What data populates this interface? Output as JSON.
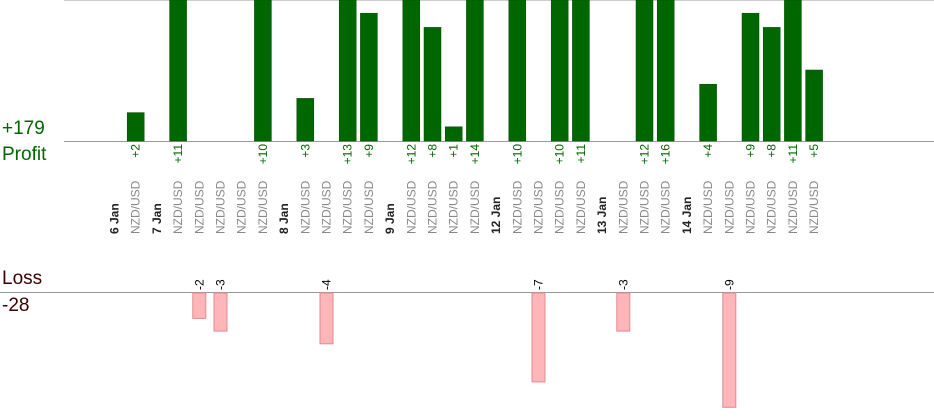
{
  "summary": {
    "profit_total": "+179",
    "profit_label": "Profit",
    "loss_label": "Loss",
    "loss_total": "-28"
  },
  "colors": {
    "profit_bar": "#006600",
    "loss_bar": "#ffb6b8",
    "loss_bar_stroke": "#e08b8f",
    "profit_text": "#006600",
    "loss_text": "#000000",
    "date_text": "#222222",
    "pair_text": "#888888"
  },
  "chart_data": {
    "type": "bar",
    "title": "",
    "xlabel": "",
    "ylabel": "",
    "grid": false,
    "legend": "none",
    "columns": [
      {
        "kind": "date",
        "label": "6 Jan"
      },
      {
        "kind": "trade",
        "label": "NZD/USD",
        "value": 2,
        "value_label": "+2"
      },
      {
        "kind": "date",
        "label": "7 Jan"
      },
      {
        "kind": "trade",
        "label": "NZD/USD",
        "value": 11,
        "value_label": "+11"
      },
      {
        "kind": "trade",
        "label": "NZD/USD",
        "value": -2,
        "value_label": "-2"
      },
      {
        "kind": "trade",
        "label": "NZD/USD",
        "value": -3,
        "value_label": "-3"
      },
      {
        "kind": "trade",
        "label": "NZD/USD",
        "value": null
      },
      {
        "kind": "trade",
        "label": "NZD/USD",
        "value": 10,
        "value_label": "+10"
      },
      {
        "kind": "date",
        "label": "8 Jan"
      },
      {
        "kind": "trade",
        "label": "NZD/USD",
        "value": 3,
        "value_label": "+3"
      },
      {
        "kind": "trade",
        "label": "NZD/USD",
        "value": -4,
        "value_label": "-4"
      },
      {
        "kind": "trade",
        "label": "NZD/USD",
        "value": 13,
        "value_label": "+13"
      },
      {
        "kind": "trade",
        "label": "NZD/USD",
        "value": 9,
        "value_label": "+9"
      },
      {
        "kind": "date",
        "label": "9 Jan"
      },
      {
        "kind": "trade",
        "label": "NZD/USD",
        "value": 12,
        "value_label": "+12"
      },
      {
        "kind": "trade",
        "label": "NZD/USD",
        "value": 8,
        "value_label": "+8"
      },
      {
        "kind": "trade",
        "label": "NZD/USD",
        "value": 1,
        "value_label": "+1"
      },
      {
        "kind": "trade",
        "label": "NZD/USD",
        "value": 14,
        "value_label": "+14"
      },
      {
        "kind": "date",
        "label": "12 Jan"
      },
      {
        "kind": "trade",
        "label": "NZD/USD",
        "value": 10,
        "value_label": "+10"
      },
      {
        "kind": "trade",
        "label": "NZD/USD",
        "value": -7,
        "value_label": "-7"
      },
      {
        "kind": "trade",
        "label": "NZD/USD",
        "value": 10,
        "value_label": "+10"
      },
      {
        "kind": "trade",
        "label": "NZD/USD",
        "value": 11,
        "value_label": "+11"
      },
      {
        "kind": "date",
        "label": "13 Jan"
      },
      {
        "kind": "trade",
        "label": "NZD/USD",
        "value": -3,
        "value_label": "-3"
      },
      {
        "kind": "trade",
        "label": "NZD/USD",
        "value": 12,
        "value_label": "+12"
      },
      {
        "kind": "trade",
        "label": "NZD/USD",
        "value": 16,
        "value_label": "+16"
      },
      {
        "kind": "date",
        "label": "14 Jan"
      },
      {
        "kind": "trade",
        "label": "NZD/USD",
        "value": 4,
        "value_label": "+4"
      },
      {
        "kind": "trade",
        "label": "NZD/USD",
        "value": -9,
        "value_label": "-9"
      },
      {
        "kind": "trade",
        "label": "NZD/USD",
        "value": 9,
        "value_label": "+9"
      },
      {
        "kind": "trade",
        "label": "NZD/USD",
        "value": 8,
        "value_label": "+8"
      },
      {
        "kind": "trade",
        "label": "NZD/USD",
        "value": 11,
        "value_label": "+11"
      },
      {
        "kind": "trade",
        "label": "NZD/USD",
        "value": 5,
        "value_label": "+5"
      }
    ]
  }
}
